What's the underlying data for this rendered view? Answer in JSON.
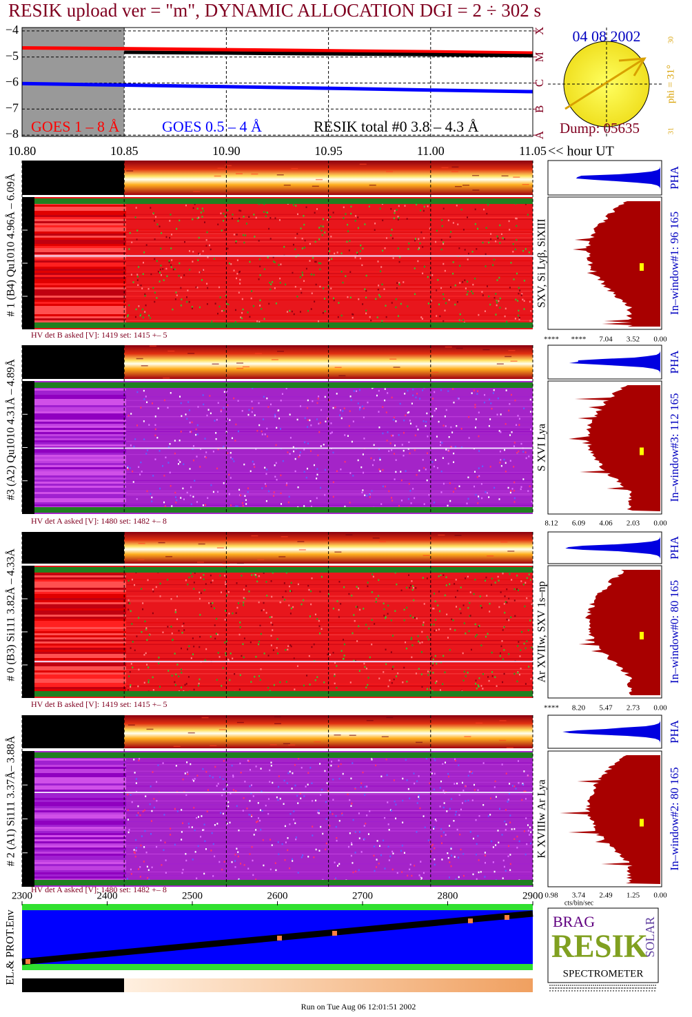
{
  "title": "RESIK upload ver = \"m\", DYNAMIC ALLOCATION  DGI =   2 ÷ 302 s",
  "chart_data": [
    {
      "type": "line",
      "xlim": [
        10.8,
        11.05
      ],
      "xticks": [
        {
          "value": 10.8,
          "label": "10.80"
        },
        {
          "value": 10.85,
          "label": "10.85"
        },
        {
          "value": 10.9,
          "label": "10.90"
        },
        {
          "value": 10.95,
          "label": "10.95"
        },
        {
          "value": 11.0,
          "label": "11.00"
        },
        {
          "value": 11.05,
          "label": "11.05"
        }
      ],
      "xlabel": "<< hour UT",
      "ylim": [
        -8.05,
        -3.87
      ],
      "yticks": [
        {
          "value": -4,
          "label": "−4"
        },
        {
          "value": -5,
          "label": "−5"
        },
        {
          "value": -6,
          "label": "−6"
        },
        {
          "value": -7,
          "label": "−7"
        },
        {
          "value": -8,
          "label": "−8"
        }
      ],
      "y2lim": [
        -8.05,
        -3.87
      ],
      "y2ticks": [
        {
          "value": -8,
          "label": "A"
        },
        {
          "value": -7,
          "label": "B"
        },
        {
          "value": -6,
          "label": "C"
        },
        {
          "value": -5,
          "label": "M"
        },
        {
          "value": -4,
          "label": "X"
        }
      ],
      "shaded_x": [
        10.8,
        10.85
      ],
      "grid": true,
      "series": [
        {
          "name": "GOES 1 – 8 Å",
          "color": "#ff0000",
          "x": [
            10.8,
            10.85,
            10.9,
            10.95,
            11.0,
            11.05
          ],
          "values": [
            -4.65,
            -4.68,
            -4.72,
            -4.76,
            -4.8,
            -4.85
          ]
        },
        {
          "name": "GOES 0.5 – 4 Å",
          "color": "#0000ff",
          "x": [
            10.8,
            10.85,
            10.9,
            10.95,
            11.0,
            11.05
          ],
          "values": [
            -6.02,
            -6.08,
            -6.14,
            -6.2,
            -6.27,
            -6.33
          ]
        },
        {
          "name": "RESIK total #0  3.8 – 4.3 Å",
          "color": "#000000",
          "x": [
            10.85,
            10.9,
            10.95,
            11.0,
            11.05
          ],
          "values": [
            -4.82,
            -4.85,
            -4.88,
            -4.91,
            -4.95
          ]
        }
      ]
    },
    {
      "type": "line",
      "xlim": [
        2300,
        2900
      ],
      "xticks": [
        2300,
        2400,
        2500,
        2600,
        2700,
        2800,
        2900
      ],
      "ylabel": "EL.& PROT.Env"
    }
  ],
  "sun": {
    "date": "04 08 2002",
    "phi": "phi = 31°",
    "dump": "Dump: 05635",
    "ticks": [
      "30",
      "31"
    ]
  },
  "channels": [
    {
      "label": "# 1 (B4) Qu1010 4.96Å – 6.09Å",
      "hv": "HV det B asked [V]:  1419 set:  1415 +–   5",
      "lines": "SXV, Si Lyβ, SiXIII",
      "pha": "PHA",
      "window": "In–window#1:  96 165",
      "hist_ticks": [
        "****",
        "****",
        "7.04",
        "3.52",
        "0.00"
      ]
    },
    {
      "label": "#3 (A2) Qu1010  4.31Å – 4.89Å",
      "hv": "HV det A asked [V]:  1480 set:  1482 +–   8",
      "lines": "S XVI Lya",
      "pha": "PHA",
      "window": "In–window#3:  112 165",
      "hist_ticks": [
        "8.12",
        "6.09",
        "4.06",
        "2.03",
        "0.00"
      ]
    },
    {
      "label": "# 0 (B3) Si111  3.82Å – 4.33Å",
      "hv": "HV det B asked [V]:  1419 set:  1415 +–   5",
      "lines": "Ar XVIIw,  SXV 1s–np",
      "pha": "PHA",
      "window": "In–window#0:  80 165",
      "hist_ticks": [
        "****",
        "8.20",
        "5.47",
        "2.73",
        "0.00"
      ]
    },
    {
      "label": "# 2 (A1) Si111  3.37Å– 3.88Å",
      "hv": "HV det A asked [V]:  1480 set:  1482 +–   8",
      "lines": "K XVIIIw  Ar Lya",
      "pha": "PHA",
      "window": "In–window#2:  80 165",
      "hist_ticks": [
        "0.98",
        "3.74",
        "2.49",
        "1.25",
        "0.00"
      ]
    }
  ],
  "hist_unit": "cts/bin/sec",
  "logo": {
    "top": "BRAG",
    "main": "RESIK",
    "side": "SOLAR",
    "bottom": "SPECTROMETER"
  },
  "footer": "Run on Tue Aug 06 12:01:51 2002"
}
